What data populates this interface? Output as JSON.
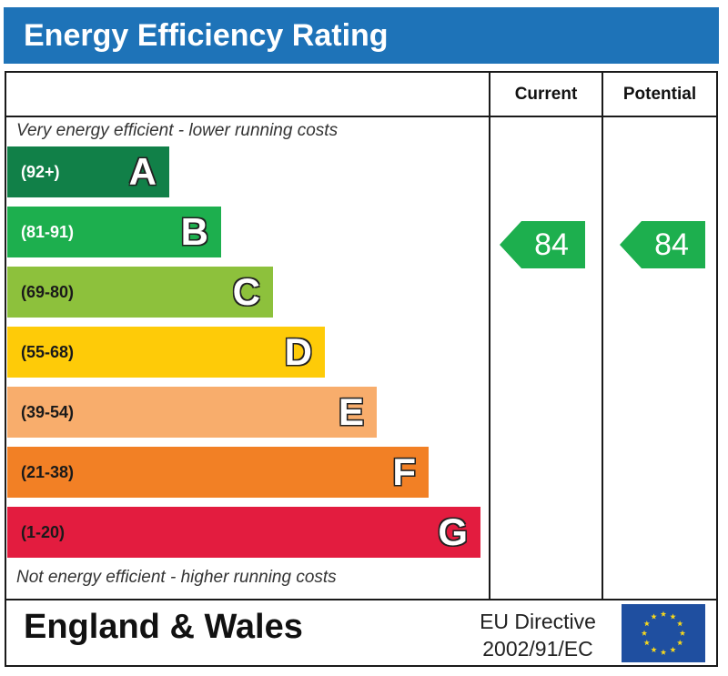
{
  "header": {
    "title": "Energy Efficiency Rating"
  },
  "columns": {
    "current": "Current",
    "potential": "Potential"
  },
  "notes": {
    "top": "Very energy efficient - lower running costs",
    "bottom": "Not energy efficient - higher running costs"
  },
  "chart_data": {
    "type": "bar",
    "title": "Energy Efficiency Rating",
    "bands": [
      {
        "range": "(92+)",
        "letter": "A",
        "color": "#118048",
        "text_color": "#ffffff"
      },
      {
        "range": "(81-91)",
        "letter": "B",
        "color": "#1daf4e",
        "text_color": "#ffffff"
      },
      {
        "range": "(69-80)",
        "letter": "C",
        "color": "#8dc13c",
        "text_color": "#1a1a1a"
      },
      {
        "range": "(55-68)",
        "letter": "D",
        "color": "#fecb08",
        "text_color": "#1a1a1a"
      },
      {
        "range": "(39-54)",
        "letter": "E",
        "color": "#f8ad6c",
        "text_color": "#1a1a1a"
      },
      {
        "range": "(21-38)",
        "letter": "F",
        "color": "#f28025",
        "text_color": "#1a1a1a"
      },
      {
        "range": "(1-20)",
        "letter": "G",
        "color": "#e31c3f",
        "text_color": "#1a1a1a"
      }
    ],
    "current": {
      "value": "84",
      "band": "B",
      "color": "#1daf4e"
    },
    "potential": {
      "value": "84",
      "band": "B",
      "color": "#1daf4e"
    }
  },
  "footer": {
    "region": "England & Wales",
    "directive_line1": "EU Directive",
    "directive_line2": "2002/91/EC",
    "flag_color": "#1f4fa0",
    "star_color": "#f7d81c"
  }
}
